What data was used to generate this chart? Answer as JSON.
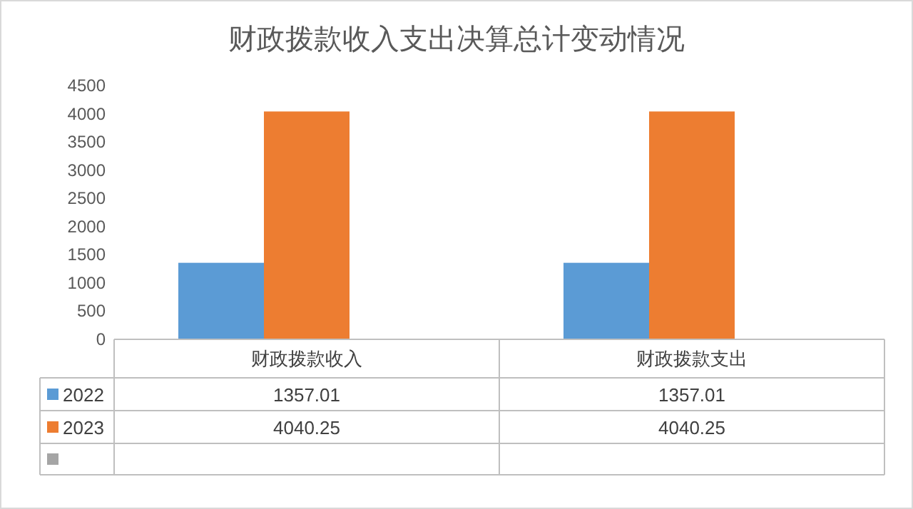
{
  "chart_data": {
    "type": "bar",
    "title": "财政拨款收入支出决算总计变动情况",
    "categories": [
      "财政拨款收入",
      "财政拨款支出"
    ],
    "series": [
      {
        "name": "2022",
        "color": "#5b9bd5",
        "values": [
          1357.01,
          1357.01
        ]
      },
      {
        "name": "2023",
        "color": "#ed7d31",
        "values": [
          4040.25,
          4040.25
        ]
      },
      {
        "color": "#a5a5a5",
        "values": [
          null,
          null
        ]
      }
    ],
    "ylim": [
      0,
      4500
    ],
    "yticks": [
      0,
      500,
      1000,
      1500,
      2000,
      2500,
      3000,
      3500,
      4000,
      4500
    ],
    "data_labels": true,
    "legend": "bottom",
    "grid": false
  }
}
